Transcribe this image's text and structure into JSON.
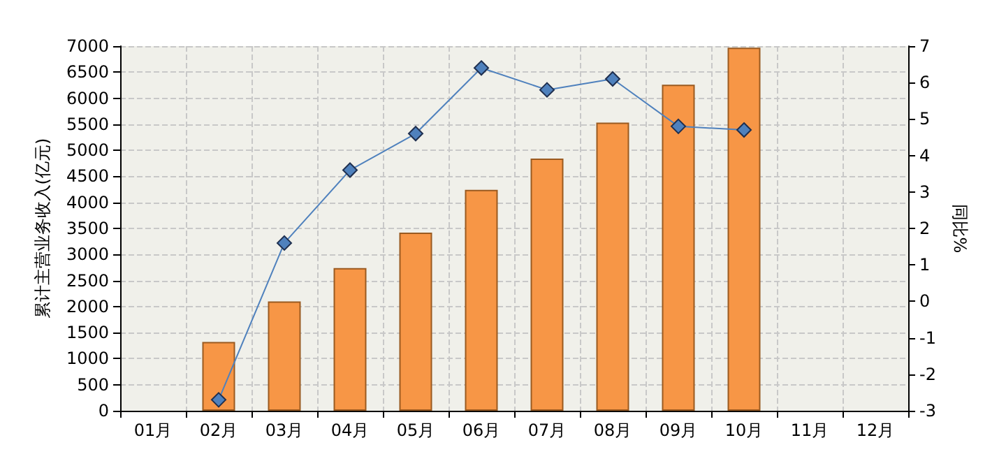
{
  "chart_data": {
    "type": "bar",
    "ylabel": "累计主营业务收入(亿元)",
    "y2label": "同比%",
    "categories": [
      "01月",
      "02月",
      "03月",
      "04月",
      "05月",
      "06月",
      "07月",
      "08月",
      "09月",
      "10月",
      "11月",
      "12月"
    ],
    "series": [
      {
        "color": "#f79646",
        "values": [
          null,
          1320,
          2100,
          2740,
          3420,
          4240,
          4840,
          5530,
          6260,
          6970,
          null,
          null
        ]
      },
      {
        "type": "line",
        "axis": "y2",
        "color": "#4f81bd",
        "marker": "diamond",
        "values": [
          null,
          -2.7,
          1.6,
          3.6,
          4.6,
          6.4,
          5.8,
          6.1,
          4.8,
          4.7,
          null,
          null
        ]
      }
    ],
    "ylim": [
      0,
      7000
    ],
    "yticks": [
      0,
      500,
      1000,
      1500,
      2000,
      2500,
      3000,
      3500,
      4000,
      4500,
      5000,
      5500,
      6000,
      6500,
      7000
    ],
    "y2lim": [
      -3,
      7
    ],
    "y2ticks": [
      -3,
      -2,
      -1,
      0,
      1,
      2,
      3,
      4,
      5,
      6,
      7
    ],
    "grid": true
  }
}
